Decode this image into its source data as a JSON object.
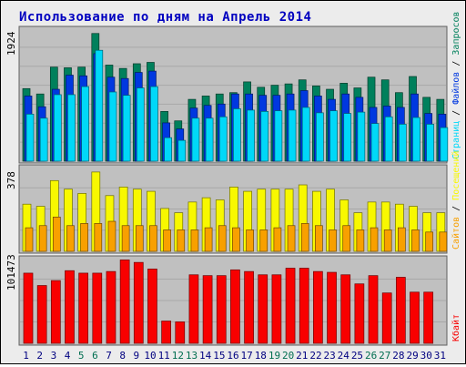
{
  "title": "Использование по дням на Апрель 2014",
  "colors": {
    "title": "#0000c0",
    "panel_bg": "#c0c0c0",
    "grid": "#a8a8a8",
    "hits": "#00805c",
    "files": "#0038e0",
    "pages": "#00d8f8",
    "visits": "#f8f800",
    "sites": "#f8a000",
    "kbytes": "#f80000",
    "weekend_day_label": "#006e50",
    "day_label": "#000080"
  },
  "chart_data": [
    {
      "type": "bar",
      "name": "hits-files-pages",
      "y_max_label": "1924",
      "y_max": 1924,
      "legend": [
        {
          "key": "hits",
          "text": "Запросов"
        },
        {
          "key": "files",
          "text": "Файлов"
        },
        {
          "key": "pages",
          "text": "Страниц"
        }
      ],
      "categories": [
        "1",
        "2",
        "3",
        "4",
        "5",
        "6",
        "7",
        "8",
        "9",
        "10",
        "11",
        "12",
        "13",
        "14",
        "15",
        "16",
        "17",
        "18",
        "19",
        "20",
        "21",
        "22",
        "23",
        "24",
        "25",
        "26",
        "27",
        "28",
        "29",
        "30",
        "31"
      ],
      "series": [
        {
          "name": "Запросов",
          "key": "hits",
          "values": [
            1080,
            1000,
            1400,
            1390,
            1400,
            1900,
            1430,
            1380,
            1450,
            1470,
            740,
            600,
            920,
            970,
            1000,
            1020,
            1180,
            1100,
            1130,
            1150,
            1210,
            1120,
            1070,
            1160,
            1090,
            1250,
            1210,
            1020,
            1260,
            950,
            920
          ]
        },
        {
          "name": "Файлов",
          "key": "files",
          "values": [
            970,
            810,
            1070,
            1280,
            1270,
            1600,
            1250,
            1230,
            1320,
            1340,
            570,
            480,
            790,
            830,
            850,
            1000,
            1000,
            980,
            980,
            1000,
            1050,
            970,
            920,
            1000,
            950,
            800,
            820,
            800,
            1000,
            710,
            700
          ]
        },
        {
          "name": "Страниц",
          "key": "pages",
          "values": [
            700,
            640,
            990,
            990,
            1110,
            1650,
            1030,
            980,
            1090,
            1110,
            350,
            310,
            640,
            640,
            660,
            780,
            760,
            740,
            750,
            760,
            800,
            720,
            750,
            710,
            730,
            560,
            660,
            550,
            650,
            550,
            500
          ]
        }
      ]
    },
    {
      "type": "bar",
      "name": "visits-sites",
      "y_max_label": "378",
      "y_max": 378,
      "legend": [
        {
          "key": "sites",
          "text": "Сайтов"
        },
        {
          "key": "visits",
          "text": "Посещений"
        }
      ],
      "categories": [
        "1",
        "2",
        "3",
        "4",
        "5",
        "6",
        "7",
        "8",
        "9",
        "10",
        "11",
        "12",
        "13",
        "14",
        "15",
        "16",
        "17",
        "18",
        "19",
        "20",
        "21",
        "22",
        "23",
        "24",
        "25",
        "26",
        "27",
        "28",
        "29",
        "30",
        "31"
      ],
      "series": [
        {
          "name": "Посещений",
          "key": "visits",
          "values": [
            220,
            210,
            330,
            290,
            270,
            370,
            260,
            300,
            290,
            280,
            200,
            180,
            230,
            250,
            240,
            300,
            280,
            290,
            290,
            290,
            310,
            280,
            290,
            240,
            180,
            230,
            230,
            220,
            210,
            180,
            180
          ]
        },
        {
          "name": "Сайтов",
          "key": "sites",
          "values": [
            110,
            120,
            160,
            120,
            130,
            130,
            140,
            120,
            120,
            120,
            100,
            100,
            100,
            110,
            120,
            110,
            100,
            100,
            110,
            120,
            130,
            120,
            100,
            120,
            100,
            110,
            100,
            110,
            100,
            90,
            90
          ]
        }
      ]
    },
    {
      "type": "bar",
      "name": "kbytes",
      "y_max_label": "101473",
      "y_max": 101473,
      "legend": [
        {
          "key": "kbytes",
          "text": "Кбайт"
        }
      ],
      "categories": [
        "1",
        "2",
        "3",
        "4",
        "5",
        "6",
        "7",
        "8",
        "9",
        "10",
        "11",
        "12",
        "13",
        "14",
        "15",
        "16",
        "17",
        "18",
        "19",
        "20",
        "21",
        "22",
        "23",
        "24",
        "25",
        "26",
        "27",
        "28",
        "29",
        "30",
        "31"
      ],
      "series": [
        {
          "name": "Кбайт",
          "key": "kbytes",
          "values": [
            85000,
            70000,
            76000,
            88000,
            85000,
            85000,
            87000,
            101000,
            98000,
            90000,
            27000,
            26000,
            83000,
            82000,
            82000,
            89000,
            87000,
            83000,
            83000,
            91000,
            91000,
            87000,
            86000,
            83000,
            72000,
            82000,
            61000,
            80000,
            62000,
            62000,
            0
          ]
        }
      ]
    }
  ],
  "x_axis": {
    "days": [
      "1",
      "2",
      "3",
      "4",
      "5",
      "6",
      "7",
      "8",
      "9",
      "10",
      "11",
      "12",
      "13",
      "14",
      "15",
      "16",
      "17",
      "18",
      "19",
      "20",
      "21",
      "22",
      "23",
      "24",
      "25",
      "26",
      "27",
      "28",
      "29",
      "30",
      "31"
    ],
    "weekend_days": [
      "5",
      "6",
      "12",
      "13",
      "19",
      "20",
      "26",
      "27"
    ]
  }
}
